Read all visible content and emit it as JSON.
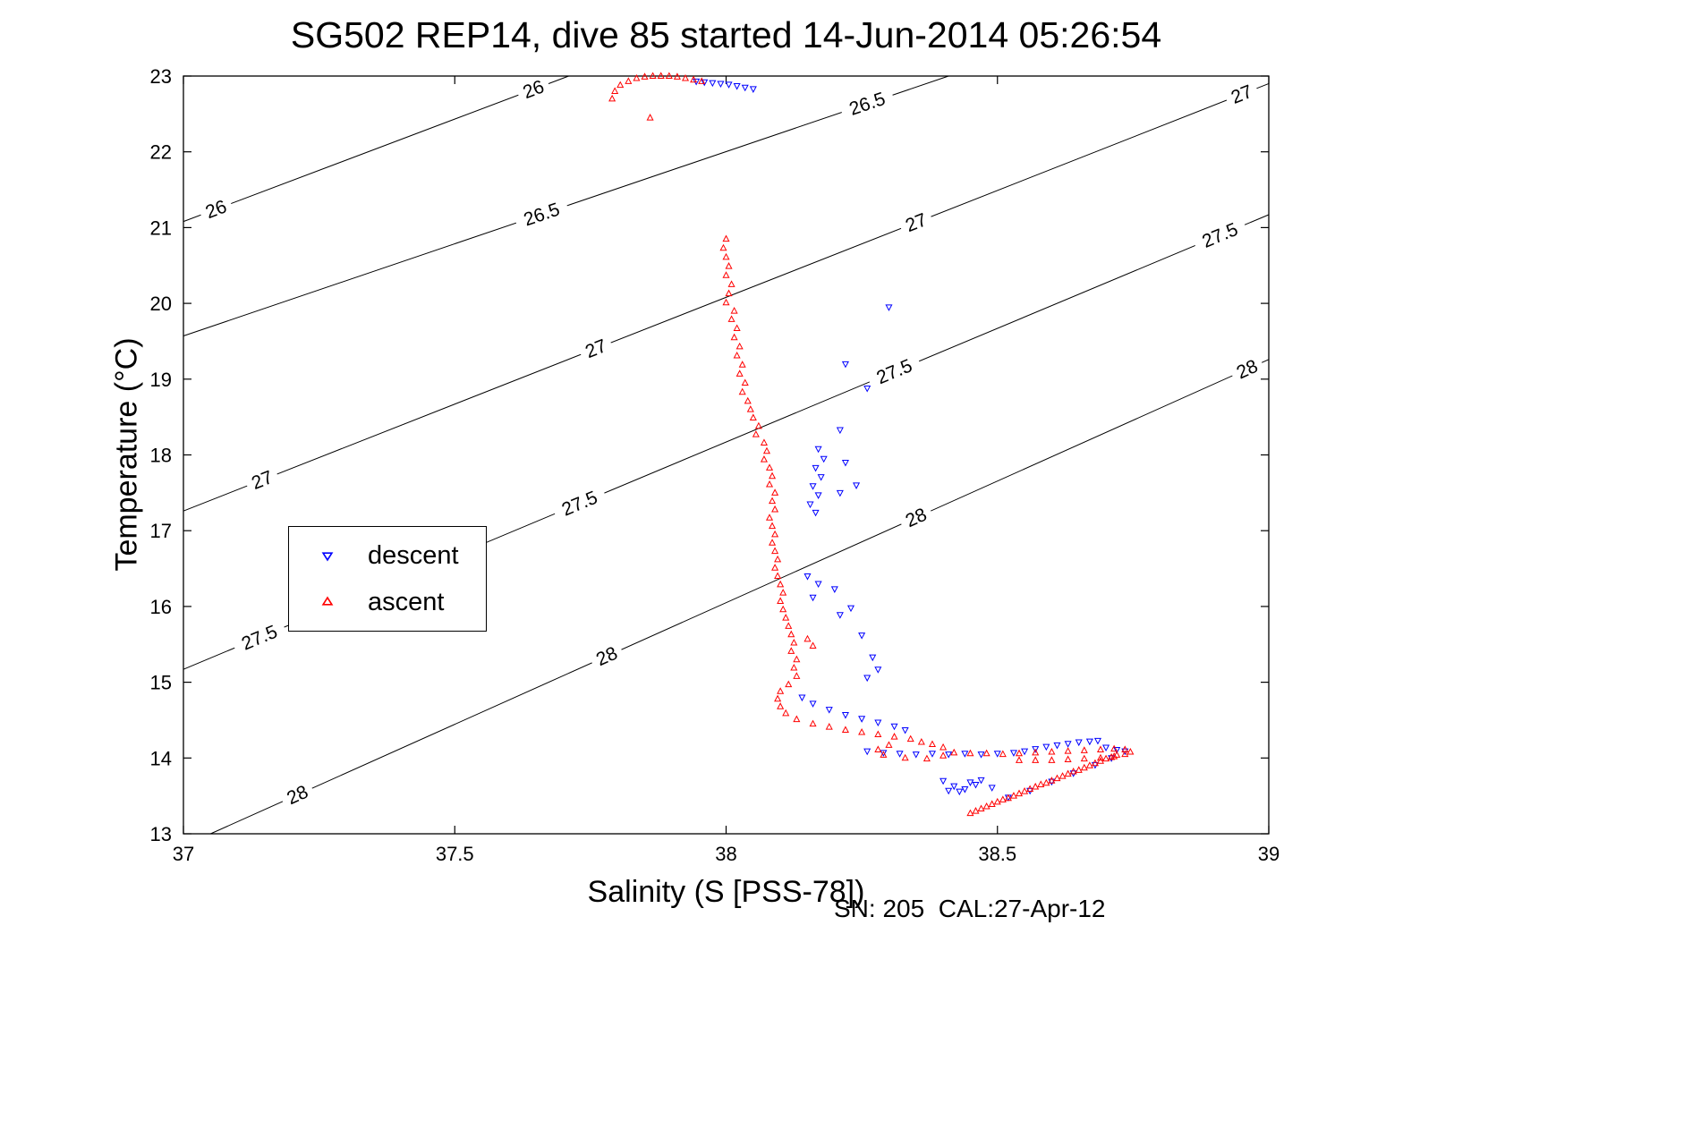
{
  "chart": {
    "title": "SG502 REP14, dive 85 started 14-Jun-2014 05:26:54",
    "xlabel": "Salinity (S [PSS-78])",
    "ylabel": "Temperature (°C)",
    "annotation": "SN: 205  CAL:27-Apr-12",
    "colors": {
      "descent": "#0000ff",
      "ascent": "#ff0000",
      "contour": "#000000",
      "axis": "#000000"
    }
  },
  "legend": {
    "descent": "descent",
    "ascent": "ascent"
  },
  "chart_data": {
    "type": "scatter",
    "title": "SG502 REP14, dive 85 started 14-Jun-2014 05:26:54",
    "xlabel": "Salinity (S [PSS-78])",
    "ylabel": "Temperature (°C)",
    "xlim": [
      37,
      39
    ],
    "ylim": [
      13,
      23
    ],
    "grid": false,
    "legend_position": "mid-left",
    "xticks": [
      {
        "v": 37,
        "label": "37"
      },
      {
        "v": 37.5,
        "label": "37.5"
      },
      {
        "v": 38,
        "label": "38"
      },
      {
        "v": 38.5,
        "label": "38.5"
      },
      {
        "v": 39,
        "label": "39"
      }
    ],
    "yticks": [
      {
        "v": 13,
        "label": "13"
      },
      {
        "v": 14,
        "label": "14"
      },
      {
        "v": 15,
        "label": "15"
      },
      {
        "v": 16,
        "label": "16"
      },
      {
        "v": 17,
        "label": "17"
      },
      {
        "v": 18,
        "label": "18"
      },
      {
        "v": 19,
        "label": "19"
      },
      {
        "v": 20,
        "label": "20"
      },
      {
        "v": 21,
        "label": "21"
      },
      {
        "v": 22,
        "label": "22"
      },
      {
        "v": 23,
        "label": "23"
      }
    ],
    "contours": [
      {
        "level": "26",
        "line": [
          [
            37.0,
            21.08
          ],
          [
            37.71,
            23.0
          ]
        ],
        "label_s": [
          37.06,
          37.645
        ]
      },
      {
        "level": "26.5",
        "line": [
          [
            37.0,
            19.57
          ],
          [
            38.41,
            23.0
          ]
        ],
        "label_s": [
          37.66,
          38.26
        ]
      },
      {
        "level": "27",
        "line": [
          [
            37.0,
            17.26
          ],
          [
            39.0,
            22.9
          ]
        ],
        "label_s": [
          37.145,
          37.76,
          38.35,
          38.95
        ]
      },
      {
        "level": "27.5",
        "line": [
          [
            37.0,
            15.17
          ],
          [
            39.0,
            21.17
          ]
        ],
        "label_s": [
          37.14,
          37.73,
          38.31,
          38.91
        ]
      },
      {
        "level": "28",
        "line": [
          [
            37.05,
            13.0
          ],
          [
            39.0,
            19.26
          ]
        ],
        "label_s": [
          37.21,
          37.78,
          38.35,
          38.96
        ]
      }
    ],
    "series": [
      {
        "name": "descent",
        "marker": "triangle-down",
        "color": "#0000ff",
        "points": [
          [
            37.945,
            22.93
          ],
          [
            37.96,
            22.92
          ],
          [
            37.975,
            22.91
          ],
          [
            37.99,
            22.9
          ],
          [
            38.005,
            22.89
          ],
          [
            38.02,
            22.87
          ],
          [
            38.035,
            22.85
          ],
          [
            38.05,
            22.83
          ],
          [
            38.3,
            19.95
          ],
          [
            38.22,
            19.2
          ],
          [
            38.26,
            18.88
          ],
          [
            38.21,
            18.33
          ],
          [
            38.17,
            18.08
          ],
          [
            38.18,
            17.95
          ],
          [
            38.22,
            17.9
          ],
          [
            38.165,
            17.83
          ],
          [
            38.175,
            17.71
          ],
          [
            38.24,
            17.6
          ],
          [
            38.16,
            17.59
          ],
          [
            38.21,
            17.5
          ],
          [
            38.17,
            17.47
          ],
          [
            38.155,
            17.35
          ],
          [
            38.165,
            17.24
          ],
          [
            38.15,
            16.4
          ],
          [
            38.17,
            16.3
          ],
          [
            38.2,
            16.23
          ],
          [
            38.16,
            16.12
          ],
          [
            38.23,
            15.98
          ],
          [
            38.21,
            15.89
          ],
          [
            38.25,
            15.62
          ],
          [
            38.27,
            15.33
          ],
          [
            38.28,
            15.17
          ],
          [
            38.26,
            15.06
          ],
          [
            38.14,
            14.8
          ],
          [
            38.16,
            14.72
          ],
          [
            38.19,
            14.64
          ],
          [
            38.22,
            14.57
          ],
          [
            38.25,
            14.52
          ],
          [
            38.28,
            14.47
          ],
          [
            38.31,
            14.42
          ],
          [
            38.33,
            14.37
          ],
          [
            38.26,
            14.09
          ],
          [
            38.29,
            14.07
          ],
          [
            38.32,
            14.06
          ],
          [
            38.35,
            14.05
          ],
          [
            38.38,
            14.06
          ],
          [
            38.41,
            14.05
          ],
          [
            38.44,
            14.06
          ],
          [
            38.47,
            14.05
          ],
          [
            38.5,
            14.06
          ],
          [
            38.53,
            14.07
          ],
          [
            38.55,
            14.09
          ],
          [
            38.57,
            14.12
          ],
          [
            38.59,
            14.15
          ],
          [
            38.61,
            14.17
          ],
          [
            38.63,
            14.19
          ],
          [
            38.65,
            14.21
          ],
          [
            38.67,
            14.22
          ],
          [
            38.685,
            14.23
          ],
          [
            38.7,
            14.14
          ],
          [
            38.72,
            14.11
          ],
          [
            38.735,
            14.09
          ],
          [
            38.4,
            13.7
          ],
          [
            38.42,
            13.63
          ],
          [
            38.44,
            13.59
          ],
          [
            38.46,
            13.65
          ],
          [
            38.43,
            13.56
          ],
          [
            38.47,
            13.71
          ],
          [
            38.49,
            13.61
          ],
          [
            38.41,
            13.57
          ],
          [
            38.45,
            13.68
          ],
          [
            38.52,
            13.48
          ],
          [
            38.56,
            13.57
          ],
          [
            38.6,
            13.69
          ],
          [
            38.64,
            13.8
          ],
          [
            38.68,
            13.91
          ],
          [
            38.71,
            14.0
          ]
        ]
      },
      {
        "name": "ascent",
        "marker": "triangle-up",
        "color": "#ff0000",
        "points": [
          [
            37.79,
            22.7
          ],
          [
            37.795,
            22.8
          ],
          [
            37.805,
            22.88
          ],
          [
            37.82,
            22.93
          ],
          [
            37.835,
            22.97
          ],
          [
            37.85,
            22.99
          ],
          [
            37.865,
            23.0
          ],
          [
            37.88,
            23.0
          ],
          [
            37.895,
            23.0
          ],
          [
            37.91,
            22.99
          ],
          [
            37.925,
            22.97
          ],
          [
            37.94,
            22.95
          ],
          [
            37.955,
            22.93
          ],
          [
            37.86,
            22.45
          ],
          [
            38.0,
            20.85
          ],
          [
            37.995,
            20.73
          ],
          [
            38.0,
            20.61
          ],
          [
            38.005,
            20.49
          ],
          [
            38.0,
            20.37
          ],
          [
            38.01,
            20.25
          ],
          [
            38.005,
            20.13
          ],
          [
            38.0,
            20.01
          ],
          [
            38.015,
            19.9
          ],
          [
            38.01,
            19.79
          ],
          [
            38.02,
            19.67
          ],
          [
            38.015,
            19.55
          ],
          [
            38.025,
            19.43
          ],
          [
            38.02,
            19.31
          ],
          [
            38.03,
            19.19
          ],
          [
            38.025,
            19.07
          ],
          [
            38.035,
            18.95
          ],
          [
            38.03,
            18.83
          ],
          [
            38.04,
            18.71
          ],
          [
            38.045,
            18.6
          ],
          [
            38.05,
            18.49
          ],
          [
            38.06,
            18.38
          ],
          [
            38.055,
            18.27
          ],
          [
            38.07,
            18.16
          ],
          [
            38.075,
            18.05
          ],
          [
            38.07,
            17.94
          ],
          [
            38.08,
            17.83
          ],
          [
            38.085,
            17.72
          ],
          [
            38.08,
            17.61
          ],
          [
            38.09,
            17.5
          ],
          [
            38.085,
            17.39
          ],
          [
            38.09,
            17.28
          ],
          [
            38.08,
            17.17
          ],
          [
            38.085,
            17.06
          ],
          [
            38.09,
            16.95
          ],
          [
            38.085,
            16.84
          ],
          [
            38.09,
            16.73
          ],
          [
            38.095,
            16.62
          ],
          [
            38.09,
            16.51
          ],
          [
            38.095,
            16.4
          ],
          [
            38.1,
            16.29
          ],
          [
            38.105,
            16.18
          ],
          [
            38.1,
            16.07
          ],
          [
            38.105,
            15.96
          ],
          [
            38.11,
            15.85
          ],
          [
            38.115,
            15.74
          ],
          [
            38.12,
            15.63
          ],
          [
            38.15,
            15.57
          ],
          [
            38.16,
            15.48
          ],
          [
            38.125,
            15.52
          ],
          [
            38.12,
            15.41
          ],
          [
            38.13,
            15.3
          ],
          [
            38.125,
            15.19
          ],
          [
            38.13,
            15.08
          ],
          [
            38.115,
            14.97
          ],
          [
            38.1,
            14.88
          ],
          [
            38.095,
            14.78
          ],
          [
            38.1,
            14.68
          ],
          [
            38.11,
            14.59
          ],
          [
            38.13,
            14.51
          ],
          [
            38.16,
            14.45
          ],
          [
            38.19,
            14.41
          ],
          [
            38.22,
            14.37
          ],
          [
            38.25,
            14.34
          ],
          [
            38.28,
            14.31
          ],
          [
            38.31,
            14.28
          ],
          [
            38.34,
            14.25
          ],
          [
            38.36,
            14.21
          ],
          [
            38.38,
            14.18
          ],
          [
            38.4,
            14.14
          ],
          [
            38.3,
            14.17
          ],
          [
            38.28,
            14.11
          ],
          [
            38.29,
            14.04
          ],
          [
            38.33,
            14.0
          ],
          [
            38.37,
            13.99
          ],
          [
            38.4,
            14.03
          ],
          [
            38.42,
            14.07
          ],
          [
            38.45,
            14.06
          ],
          [
            38.48,
            14.06
          ],
          [
            38.51,
            14.05
          ],
          [
            38.54,
            14.06
          ],
          [
            38.57,
            14.07
          ],
          [
            38.6,
            14.08
          ],
          [
            38.63,
            14.09
          ],
          [
            38.66,
            14.1
          ],
          [
            38.69,
            14.11
          ],
          [
            38.715,
            14.12
          ],
          [
            38.735,
            14.11
          ],
          [
            38.745,
            14.08
          ],
          [
            38.735,
            14.05
          ],
          [
            38.715,
            14.02
          ],
          [
            38.69,
            14.0
          ],
          [
            38.66,
            13.99
          ],
          [
            38.63,
            13.98
          ],
          [
            38.6,
            13.97
          ],
          [
            38.57,
            13.97
          ],
          [
            38.54,
            13.97
          ],
          [
            38.45,
            13.27
          ],
          [
            38.46,
            13.3
          ],
          [
            38.47,
            13.33
          ],
          [
            38.48,
            13.36
          ],
          [
            38.49,
            13.39
          ],
          [
            38.5,
            13.42
          ],
          [
            38.51,
            13.45
          ],
          [
            38.52,
            13.47
          ],
          [
            38.53,
            13.5
          ],
          [
            38.54,
            13.53
          ],
          [
            38.55,
            13.56
          ],
          [
            38.56,
            13.59
          ],
          [
            38.57,
            13.62
          ],
          [
            38.58,
            13.65
          ],
          [
            38.59,
            13.67
          ],
          [
            38.6,
            13.7
          ],
          [
            38.61,
            13.73
          ],
          [
            38.62,
            13.76
          ],
          [
            38.63,
            13.79
          ],
          [
            38.64,
            13.82
          ],
          [
            38.65,
            13.84
          ],
          [
            38.66,
            13.87
          ],
          [
            38.67,
            13.9
          ],
          [
            38.68,
            13.93
          ],
          [
            38.69,
            13.96
          ],
          [
            38.7,
            13.99
          ],
          [
            38.71,
            14.01
          ],
          [
            38.72,
            14.04
          ]
        ]
      }
    ]
  }
}
